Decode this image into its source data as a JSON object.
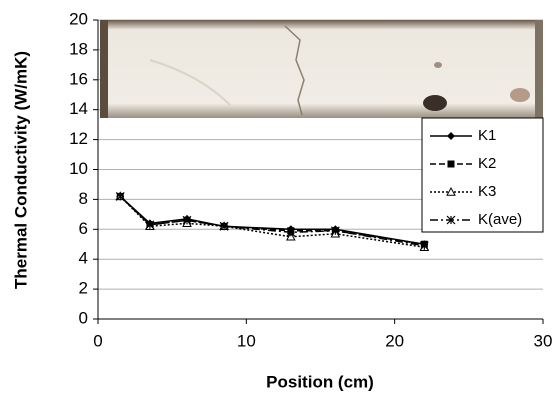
{
  "chart_data": {
    "type": "line",
    "xlabel": "Position (cm)",
    "ylabel": "Thermal Conductivity (W/mK)",
    "x": [
      1.5,
      3.5,
      6,
      8.5,
      13,
      16,
      22
    ],
    "series": [
      {
        "name": "K1",
        "color": "#000000",
        "marker": "diamond",
        "dash": "solid",
        "values": [
          8.2,
          6.4,
          6.7,
          6.2,
          6.0,
          6.0,
          5.0
        ]
      },
      {
        "name": "K2",
        "color": "#000000",
        "marker": "square",
        "dash": "dashed",
        "values": [
          8.2,
          6.3,
          6.6,
          6.2,
          5.9,
          5.9,
          5.0
        ]
      },
      {
        "name": "K3",
        "color": "#000000",
        "marker": "triangle",
        "dash": "dotted",
        "values": [
          8.2,
          6.2,
          6.4,
          6.2,
          5.5,
          5.7,
          4.8
        ]
      },
      {
        "name": "K(ave)",
        "color": "#000000",
        "marker": "star",
        "dash": "dashdot",
        "values": [
          8.2,
          6.3,
          6.6,
          6.2,
          5.8,
          5.9,
          4.9
        ]
      }
    ],
    "xlim": [
      0,
      30
    ],
    "xticks": [
      0,
      10,
      20,
      30
    ],
    "ylim": [
      0,
      20
    ],
    "yticks": [
      0,
      2,
      4,
      6,
      8,
      10,
      12,
      14,
      16,
      18,
      20
    ],
    "grid": true,
    "legend": "right"
  }
}
